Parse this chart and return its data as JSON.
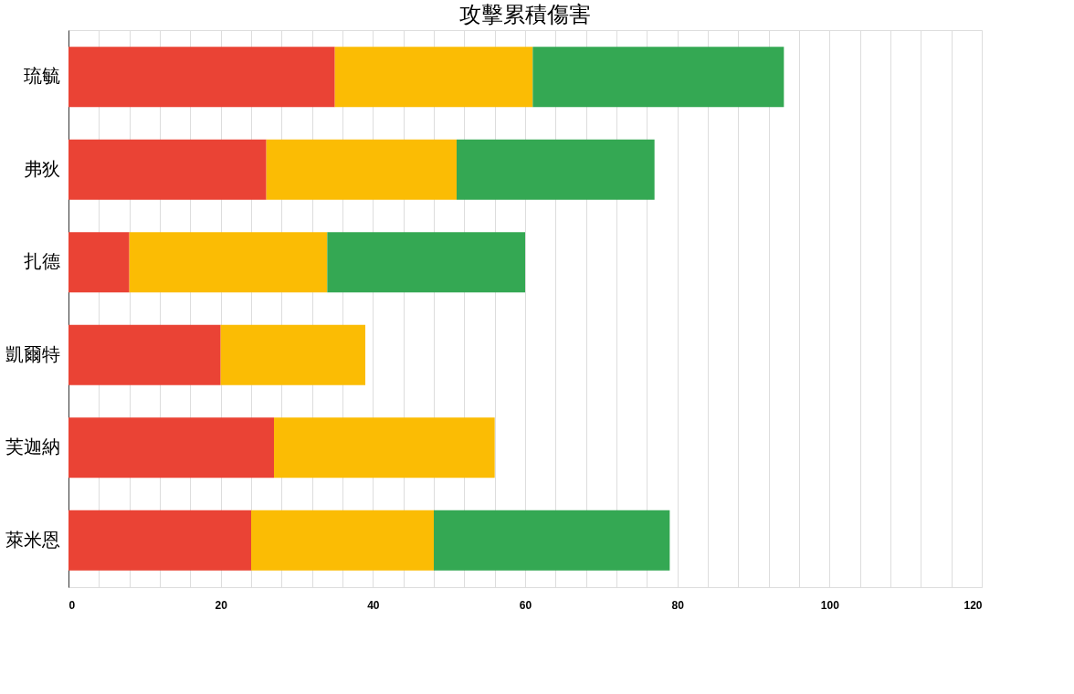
{
  "chart_data": {
    "type": "bar",
    "orientation": "horizontal",
    "stacked": true,
    "title": "攻擊累積傷害",
    "categories": [
      "琉毓",
      "弗狄",
      "扎德",
      "凱爾特",
      "芙迦納",
      "萊米恩"
    ],
    "series": [
      {
        "color": "#ea4335",
        "values": [
          35,
          26,
          8,
          20,
          27,
          24
        ]
      },
      {
        "color": "#fbbc04",
        "values": [
          26,
          25,
          26,
          19,
          29,
          24
        ]
      },
      {
        "color": "#34a853",
        "values": [
          33,
          26,
          26,
          null,
          null,
          31
        ]
      }
    ],
    "xlim": [
      0,
      120
    ],
    "xticks": [
      0,
      {
        "value": 4,
        "label": null
      },
      {
        "value": 8,
        "label": null
      },
      {
        "value": 12,
        "label": null
      },
      {
        "value": 16,
        "label": null
      },
      20,
      {
        "value": 24,
        "label": null
      },
      {
        "value": 28,
        "label": null
      },
      {
        "value": 32,
        "label": null
      },
      {
        "value": 36,
        "label": null
      },
      40,
      {
        "value": 44,
        "label": null
      },
      {
        "value": 48,
        "label": null
      },
      {
        "value": 52,
        "label": null
      },
      {
        "value": 56,
        "label": null
      },
      60,
      {
        "value": 64,
        "label": null
      },
      {
        "value": 68,
        "label": null
      },
      {
        "value": 72,
        "label": null
      },
      {
        "value": 76,
        "label": null
      },
      80,
      {
        "value": 84,
        "label": null
      },
      {
        "value": 88,
        "label": null
      },
      {
        "value": 92,
        "label": null
      },
      {
        "value": 96,
        "label": null
      },
      100,
      {
        "value": 104,
        "label": null
      },
      {
        "value": 108,
        "label": null
      },
      {
        "value": 112,
        "label": null
      },
      {
        "value": 116,
        "label": null
      },
      120
    ],
    "grid": "x"
  }
}
